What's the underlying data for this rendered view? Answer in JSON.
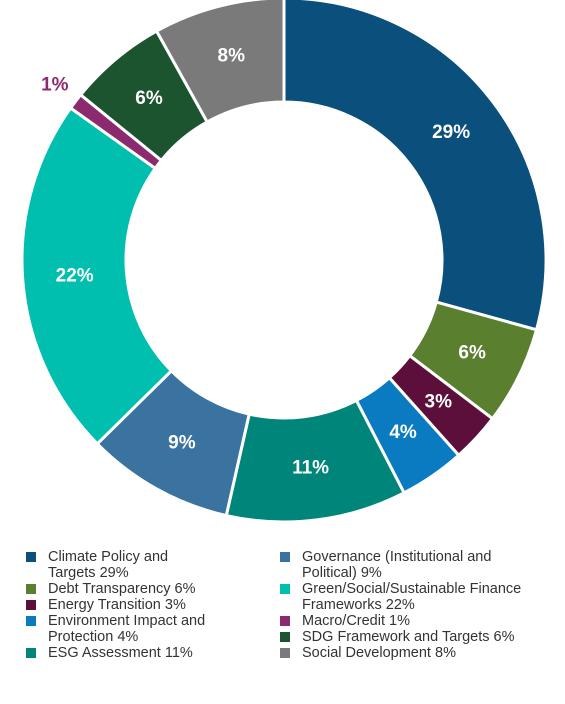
{
  "chart_data": {
    "type": "donut",
    "categories": [
      "Climate Policy and Targets",
      "Debt Transparency",
      "Energy Transition",
      "Environment Impact and Protection",
      "ESG Assessment",
      "Governance (Institutional and Political)",
      "Green/Social/Sustainable Finance Frameworks",
      "Macro/Credit",
      "SDG Framework and Targets",
      "Social Development"
    ],
    "values": [
      29,
      6,
      3,
      4,
      11,
      9,
      22,
      1,
      6,
      8
    ],
    "value_labels": [
      "29%",
      "6%",
      "3%",
      "4%",
      "11%",
      "9%",
      "22%",
      "1%",
      "6%",
      "8%"
    ],
    "colors": [
      "#0b4f7c",
      "#5a7f2e",
      "#5c0f3a",
      "#0a7bc1",
      "#00857a",
      "#3a73a0",
      "#00bfae",
      "#8b2a6e",
      "#1d5430",
      "#7a7a7a"
    ]
  }
}
